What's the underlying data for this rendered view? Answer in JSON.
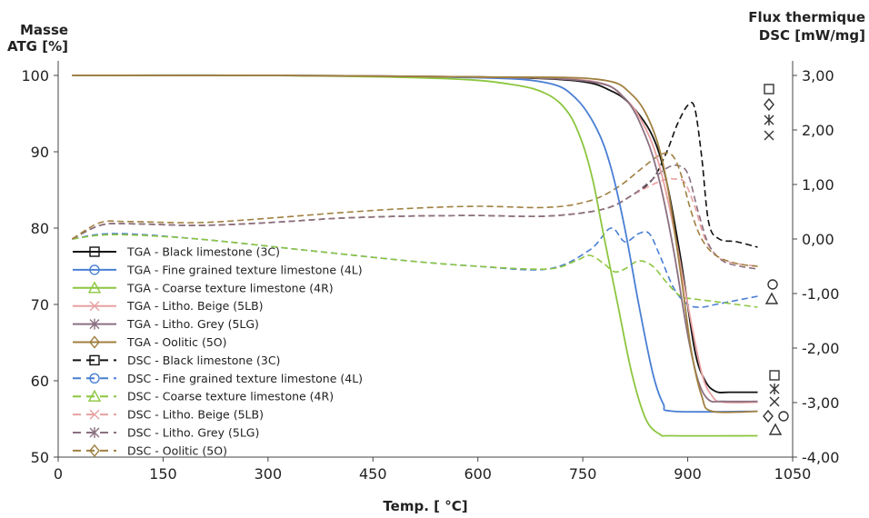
{
  "chart_data": {
    "type": "line",
    "xlabel": "Temp. [ °C]",
    "ylabel_left": [
      "Masse",
      "ATG [%]"
    ],
    "ylabel_right": [
      "Flux thermique",
      "DSC [mW/mg]"
    ],
    "xlim": [
      0,
      1050
    ],
    "ylim_left": [
      50,
      100
    ],
    "ylim_right": [
      -4.0,
      3.0
    ],
    "x_ticks": [
      "0",
      "150",
      "300",
      "450",
      "600",
      "750",
      "900",
      "1050"
    ],
    "x_tick_values": [
      0,
      150,
      300,
      450,
      600,
      750,
      900,
      1050
    ],
    "y_left_ticks": [
      "50",
      "60",
      "70",
      "80",
      "90",
      "100"
    ],
    "y_left_tick_values": [
      50,
      60,
      70,
      80,
      90,
      100
    ],
    "y_right_ticks": [
      "-4,00",
      "-3,00",
      "-2,00",
      "-1,00",
      "0,00",
      "1,00",
      "2,00",
      "3,00"
    ],
    "y_right_tick_values": [
      -4,
      -3,
      -2,
      -1,
      0,
      1,
      2,
      3
    ],
    "grid": false,
    "legend_position": "bottom-left",
    "series": [
      {
        "name": "TGA - Black limestone (3C)",
        "axis": "left",
        "color": "#111111",
        "dash": "solid",
        "marker": "square",
        "x": [
          20,
          300,
          600,
          740,
          790,
          820,
          850,
          870,
          890,
          910,
          925,
          940,
          960,
          1000
        ],
        "y": [
          100,
          100,
          99.8,
          99.3,
          98,
          96,
          92,
          86,
          76,
          64,
          60,
          58.6,
          58.5,
          58.5
        ]
      },
      {
        "name": "TGA - Fine grained texture limestone (4L)",
        "axis": "left",
        "color": "#4a7fd4",
        "dash": "solid",
        "marker": "circle",
        "x": [
          20,
          300,
          600,
          700,
          740,
          770,
          790,
          810,
          830,
          850,
          865,
          880,
          1000
        ],
        "y": [
          100,
          100,
          99.7,
          99,
          97,
          93,
          88,
          80,
          70,
          61,
          57,
          56,
          56
        ]
      },
      {
        "name": "TGA - Coarse texture limestone (4R)",
        "axis": "left",
        "color": "#8cc63f",
        "dash": "solid",
        "marker": "triangle",
        "x": [
          20,
          300,
          550,
          650,
          700,
          730,
          750,
          765,
          780,
          800,
          820,
          840,
          860,
          880,
          1000
        ],
        "y": [
          100,
          100,
          99.6,
          98.8,
          97.5,
          95,
          91,
          86,
          79,
          70,
          61,
          55,
          53,
          52.8,
          52.8
        ]
      },
      {
        "name": "TGA - Litho. Beige (5LB)",
        "axis": "left",
        "color": "#e8a0a0",
        "dash": "solid",
        "marker": "x",
        "x": [
          20,
          300,
          600,
          760,
          810,
          840,
          860,
          880,
          900,
          920,
          935,
          950,
          1000
        ],
        "y": [
          100,
          100,
          99.8,
          99.3,
          97,
          93,
          88,
          80,
          70,
          61,
          58,
          57.2,
          57.2
        ]
      },
      {
        "name": "TGA - Litho. Grey (5LG)",
        "axis": "left",
        "color": "#8a7080",
        "dash": "solid",
        "marker": "star",
        "x": [
          20,
          300,
          600,
          760,
          810,
          840,
          860,
          880,
          900,
          915,
          930,
          950,
          1000
        ],
        "y": [
          100,
          100,
          99.8,
          99.2,
          97,
          92,
          86,
          77,
          66,
          60,
          57.5,
          57.3,
          57.3
        ]
      },
      {
        "name": "TGA - Oolitic (5O)",
        "axis": "left",
        "color": "#a08040",
        "dash": "solid",
        "marker": "diamond",
        "x": [
          20,
          300,
          600,
          770,
          820,
          850,
          870,
          890,
          905,
          920,
          935,
          1000
        ],
        "y": [
          100,
          100,
          99.8,
          99.5,
          97.5,
          93,
          86,
          74,
          64,
          58,
          56,
          56
        ]
      },
      {
        "name": "DSC - Black limestone (3C)",
        "axis": "right",
        "color": "#111111",
        "dash": "dashed",
        "marker": "square",
        "x": [
          20,
          60,
          100,
          200,
          300,
          400,
          500,
          600,
          700,
          780,
          820,
          850,
          870,
          885,
          900,
          910,
          920,
          930,
          945,
          970,
          1000
        ],
        "y": [
          0,
          0.25,
          0.28,
          0.25,
          0.3,
          0.38,
          0.42,
          0.43,
          0.42,
          0.55,
          0.8,
          1.1,
          1.6,
          2.1,
          2.45,
          2.4,
          1.5,
          0.3,
          0.0,
          -0.05,
          -0.15
        ]
      },
      {
        "name": "DSC - Fine grained texture limestone (4L)",
        "axis": "right",
        "color": "#4a7fd4",
        "dash": "dashed",
        "marker": "circle",
        "x": [
          20,
          80,
          200,
          350,
          500,
          600,
          700,
          760,
          790,
          810,
          830,
          845,
          860,
          880,
          900,
          920,
          940,
          960,
          1000
        ],
        "y": [
          0.0,
          0.1,
          0.0,
          -0.2,
          -0.4,
          -0.5,
          -0.55,
          -0.2,
          0.2,
          -0.05,
          0.1,
          0.1,
          -0.3,
          -0.9,
          -1.2,
          -1.25,
          -1.2,
          -1.15,
          -1.05
        ]
      },
      {
        "name": "DSC - Coarse texture limestone (4R)",
        "axis": "right",
        "color": "#8cc63f",
        "dash": "dashed",
        "marker": "triangle",
        "x": [
          20,
          80,
          200,
          350,
          500,
          600,
          700,
          740,
          760,
          780,
          795,
          810,
          830,
          850,
          870,
          890,
          910,
          940,
          970,
          1000
        ],
        "y": [
          0.0,
          0.08,
          0.0,
          -0.2,
          -0.4,
          -0.5,
          -0.55,
          -0.4,
          -0.3,
          -0.45,
          -0.6,
          -0.55,
          -0.4,
          -0.5,
          -0.8,
          -1.05,
          -1.1,
          -1.15,
          -1.2,
          -1.25
        ]
      },
      {
        "name": "DSC - Litho. Beige (5LB)",
        "axis": "right",
        "color": "#e8a0a0",
        "dash": "dashed",
        "marker": "x",
        "x": [
          20,
          60,
          100,
          200,
          300,
          400,
          500,
          600,
          700,
          780,
          820,
          850,
          870,
          880,
          895,
          910,
          925,
          945,
          970,
          1000
        ],
        "y": [
          0.0,
          0.25,
          0.28,
          0.25,
          0.3,
          0.38,
          0.42,
          0.43,
          0.42,
          0.55,
          0.8,
          1.0,
          1.1,
          1.1,
          1.05,
          0.6,
          0.0,
          -0.35,
          -0.45,
          -0.5
        ]
      },
      {
        "name": "DSC - Litho. Grey (5LG)",
        "axis": "right",
        "color": "#8a7080",
        "dash": "dashed",
        "marker": "star",
        "x": [
          20,
          60,
          100,
          200,
          300,
          400,
          500,
          600,
          700,
          780,
          820,
          850,
          870,
          885,
          900,
          915,
          930,
          950,
          975,
          1000
        ],
        "y": [
          0.0,
          0.25,
          0.28,
          0.25,
          0.3,
          0.38,
          0.42,
          0.43,
          0.42,
          0.55,
          0.8,
          1.1,
          1.3,
          1.35,
          1.2,
          0.5,
          -0.1,
          -0.4,
          -0.5,
          -0.55
        ]
      },
      {
        "name": "DSC - Oolitic (5O)",
        "axis": "right",
        "color": "#a08040",
        "dash": "dashed",
        "marker": "diamond",
        "x": [
          20,
          60,
          100,
          200,
          300,
          400,
          500,
          600,
          700,
          760,
          800,
          830,
          855,
          870,
          880,
          890,
          905,
          920,
          940,
          970,
          1000
        ],
        "y": [
          0.0,
          0.3,
          0.32,
          0.3,
          0.38,
          0.48,
          0.56,
          0.6,
          0.58,
          0.7,
          0.95,
          1.25,
          1.5,
          1.58,
          1.5,
          1.2,
          0.5,
          0.0,
          -0.3,
          -0.45,
          -0.5
        ]
      }
    ]
  }
}
